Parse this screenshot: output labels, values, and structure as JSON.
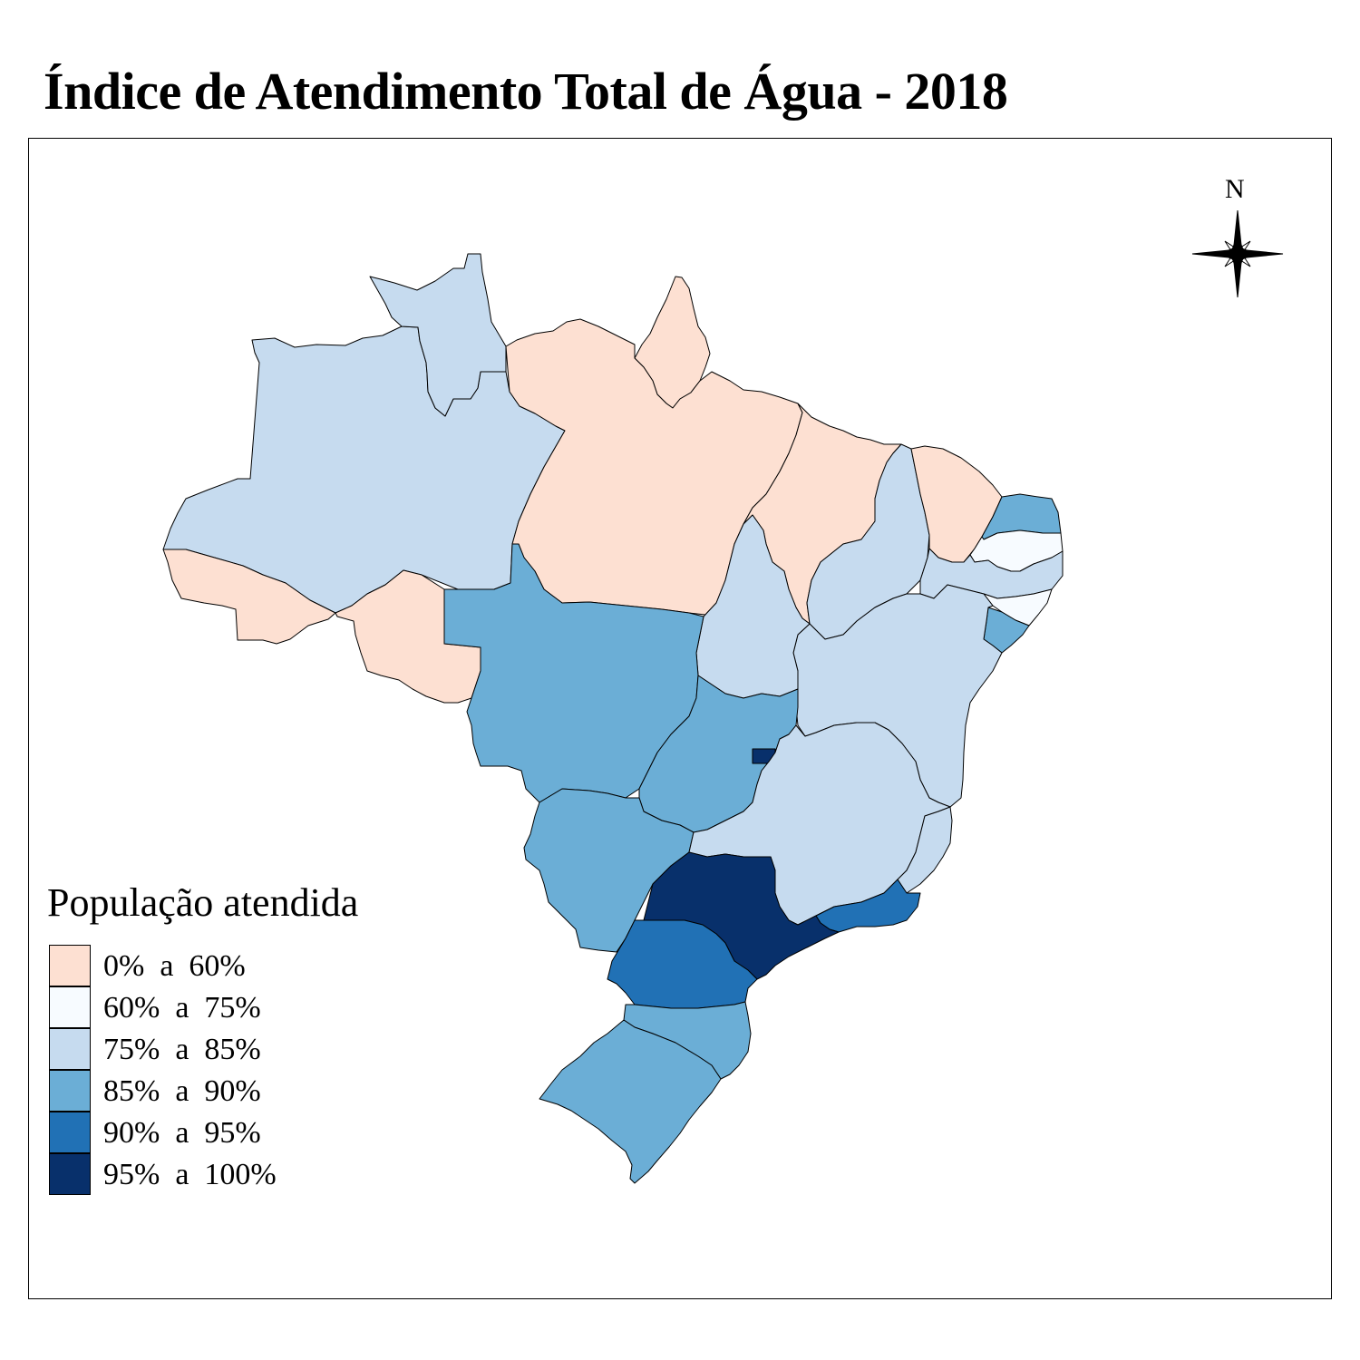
{
  "title": "Índice de Atendimento Total de Água - 2018",
  "north_arrow": {
    "label": "N"
  },
  "legend": {
    "title": "População atendida",
    "items": [
      {
        "label": "0%  a  60%",
        "color": "#fde0d2"
      },
      {
        "label": "60%  a  75%",
        "color": "#f7fbff"
      },
      {
        "label": "75%  a  85%",
        "color": "#c6dbef"
      },
      {
        "label": "85%  a  90%",
        "color": "#6baed6"
      },
      {
        "label": "90%  a  95%",
        "color": "#2171b5"
      },
      {
        "label": "95%  a  100%",
        "color": "#08306b"
      }
    ]
  },
  "regions": [
    {
      "name": "AM",
      "class": "75%  a  85%"
    },
    {
      "name": "RR",
      "class": "75%  a  85%"
    },
    {
      "name": "AP",
      "class": "0%  a  60%"
    },
    {
      "name": "PA",
      "class": "0%  a  60%"
    },
    {
      "name": "AC",
      "class": "0%  a  60%"
    },
    {
      "name": "RO",
      "class": "0%  a  60%"
    },
    {
      "name": "MA",
      "class": "0%  a  60%"
    },
    {
      "name": "PI",
      "class": "75%  a  85%"
    },
    {
      "name": "CE",
      "class": "0%  a  60%"
    },
    {
      "name": "RN",
      "class": "85%  a  90%"
    },
    {
      "name": "PB",
      "class": "60%  a  75%"
    },
    {
      "name": "PE",
      "class": "75%  a  85%"
    },
    {
      "name": "AL",
      "class": "60%  a  75%"
    },
    {
      "name": "SE",
      "class": "85%  a  90%"
    },
    {
      "name": "BA",
      "class": "75%  a  85%"
    },
    {
      "name": "TO",
      "class": "75%  a  85%"
    },
    {
      "name": "MT",
      "class": "85%  a  90%"
    },
    {
      "name": "GO",
      "class": "85%  a  90%"
    },
    {
      "name": "DF",
      "class": "95%  a  100%"
    },
    {
      "name": "MS",
      "class": "85%  a  90%"
    },
    {
      "name": "MG",
      "class": "75%  a  85%"
    },
    {
      "name": "ES",
      "class": "75%  a  85%"
    },
    {
      "name": "RJ",
      "class": "90%  a  95%"
    },
    {
      "name": "SP",
      "class": "95%  a  100%"
    },
    {
      "name": "PR",
      "class": "90%  a  95%"
    },
    {
      "name": "SC",
      "class": "85%  a  90%"
    },
    {
      "name": "RS",
      "class": "85%  a  90%"
    }
  ]
}
